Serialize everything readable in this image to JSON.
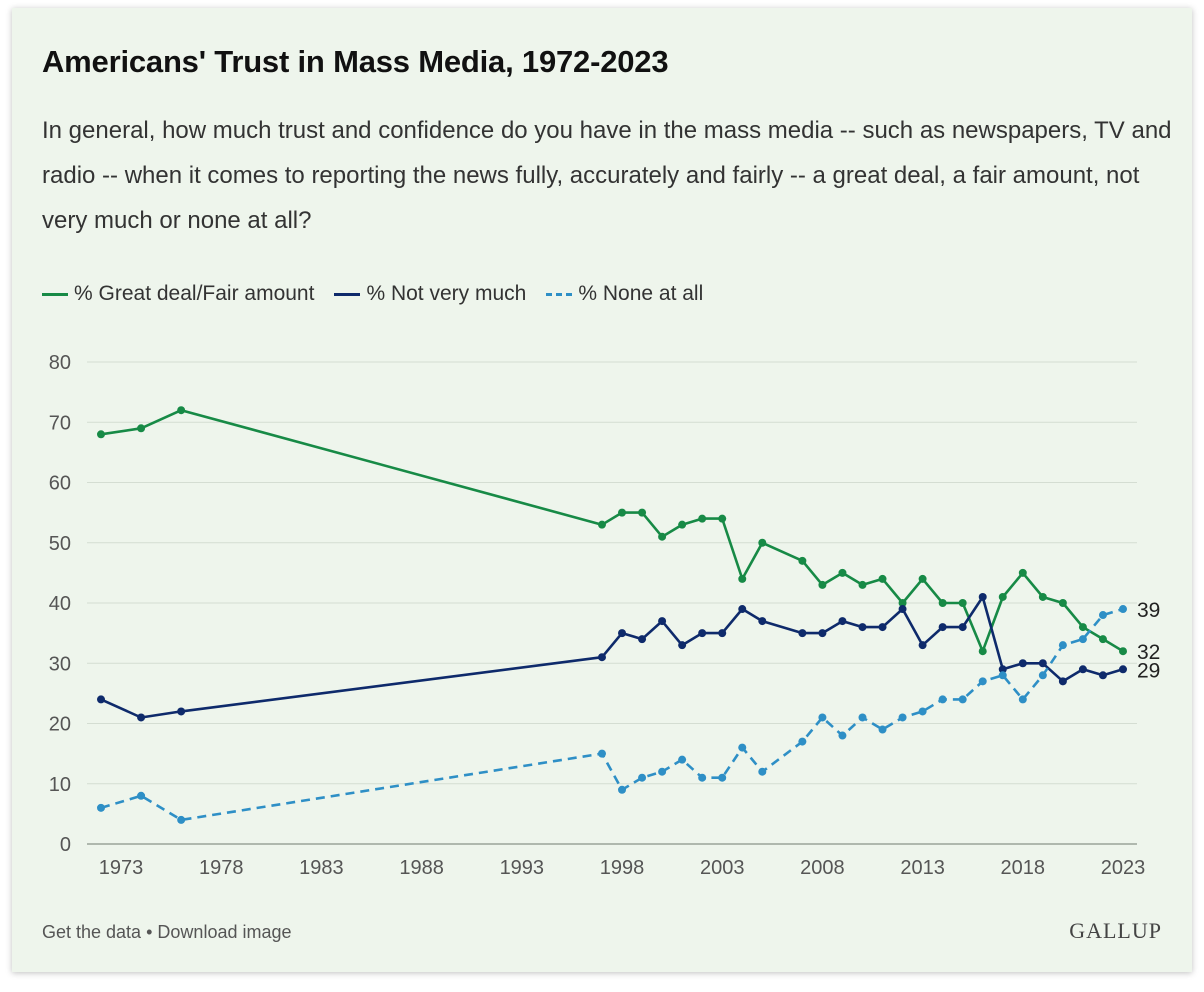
{
  "title": "Americans' Trust in Mass Media, 1972-2023",
  "subtitle": "In general, how much trust and confidence do you have in the mass media -- such as newspapers, TV and radio -- when it comes to reporting the news fully, accurately and fairly -- a great deal, a fair amount, not very much or none at all?",
  "footer": {
    "get_data": "Get the data",
    "separator": "•",
    "download": "Download image"
  },
  "logo": "GALLUP",
  "colors": {
    "great": "#178a46",
    "notvery": "#0e2a6b",
    "none": "#2e8fc6",
    "grid": "#d4ddd2",
    "axis": "#555555",
    "background": "#eef5ec"
  },
  "chart_data": {
    "type": "line",
    "ylim": [
      0,
      80
    ],
    "yticks": [
      0,
      10,
      20,
      30,
      40,
      50,
      60,
      70,
      80
    ],
    "xlim": [
      1972,
      2023
    ],
    "xticks": [
      1973,
      1978,
      1983,
      1988,
      1993,
      1998,
      2003,
      2008,
      2013,
      2018,
      2023
    ],
    "grid": true,
    "legend_position": "top-left",
    "x": [
      1972,
      1974,
      1976,
      1997,
      1998,
      1999,
      2000,
      2001,
      2002,
      2003,
      2004,
      2005,
      2007,
      2008,
      2009,
      2010,
      2011,
      2012,
      2013,
      2014,
      2015,
      2016,
      2017,
      2018,
      2019,
      2020,
      2021,
      2022,
      2023
    ],
    "series": [
      {
        "name": "% Great deal/Fair amount",
        "color_key": "great",
        "dashed": false,
        "values": [
          68,
          69,
          72,
          53,
          55,
          55,
          51,
          53,
          54,
          54,
          44,
          50,
          47,
          43,
          45,
          43,
          44,
          40,
          44,
          40,
          40,
          32,
          41,
          45,
          41,
          40,
          36,
          34,
          32
        ],
        "end_label": "32"
      },
      {
        "name": "% Not very much",
        "color_key": "notvery",
        "dashed": false,
        "values": [
          24,
          21,
          22,
          31,
          35,
          34,
          37,
          33,
          35,
          35,
          39,
          37,
          35,
          35,
          37,
          36,
          36,
          39,
          33,
          36,
          36,
          41,
          29,
          30,
          30,
          27,
          29,
          28,
          29
        ],
        "end_label": "29"
      },
      {
        "name": "% None at all",
        "color_key": "none",
        "dashed": true,
        "values": [
          6,
          8,
          4,
          15,
          9,
          11,
          12,
          14,
          11,
          11,
          16,
          12,
          17,
          21,
          18,
          21,
          19,
          21,
          22,
          24,
          24,
          27,
          28,
          24,
          28,
          33,
          34,
          38,
          39
        ],
        "end_label": "39"
      }
    ]
  }
}
